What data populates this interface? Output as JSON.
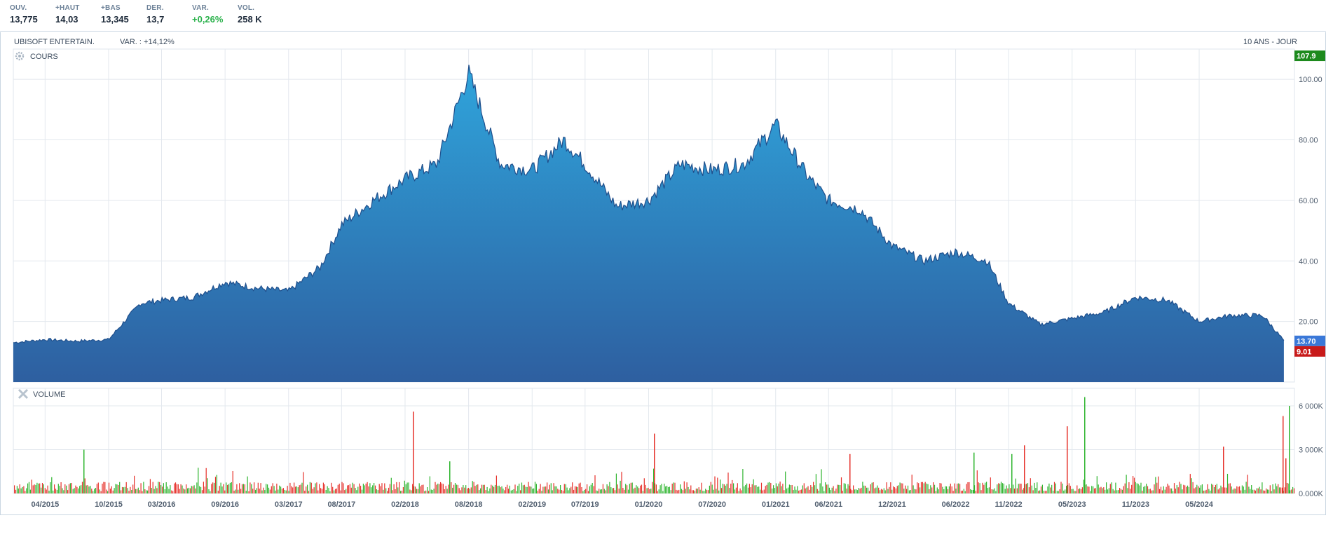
{
  "quote": {
    "open_label": "OUV.",
    "open_value": "13,775",
    "high_label": "+HAUT",
    "high_value": "14,03",
    "low_label": "+BAS",
    "low_value": "13,345",
    "last_label": "DER.",
    "last_value": "13,7",
    "change_label": "VAR.",
    "change_value": "+0,26%",
    "volume_label": "VOL.",
    "volume_value": "258 K"
  },
  "header": {
    "name": "UBISOFT ENTERTAIN.",
    "variation": "VAR. : +14,12%",
    "period": "10 ANS - JOUR"
  },
  "colors": {
    "area_top": "#2fa5dc",
    "area_bottom": "#2e5fa0",
    "line": "#1f4f8c",
    "volume_up": "#2fb52f",
    "volume_down": "#e6302a",
    "badge_high": "#1d8a1d",
    "badge_last": "#3a78d8",
    "badge_low": "#c81a1a"
  },
  "chart_data": [
    {
      "type": "area",
      "panel": "COURS",
      "panel_icon": "gear-icon",
      "x_tick_labels": [
        "04/2015",
        "10/2015",
        "03/2016",
        "09/2016",
        "03/2017",
        "08/2017",
        "02/2018",
        "08/2018",
        "02/2019",
        "07/2019",
        "01/2020",
        "07/2020",
        "01/2021",
        "06/2021",
        "12/2021",
        "06/2022",
        "11/2022",
        "05/2023",
        "11/2023",
        "05/2024"
      ],
      "y_tick_labels": [
        "20.00",
        "40.00",
        "60.00",
        "80.00",
        "100.00"
      ],
      "ylim": [
        0,
        110
      ],
      "grid": true,
      "markers": {
        "high": "107.9",
        "last": "13.70",
        "low": "9.01"
      },
      "series": [
        {
          "x": [
            "01/2015",
            "04/2015",
            "07/2015",
            "10/2015",
            "01/2016",
            "03/2016",
            "06/2016",
            "09/2016",
            "12/2016",
            "03/2017",
            "06/2017",
            "08/2017",
            "11/2017",
            "02/2018",
            "05/2018",
            "08/2018",
            "11/2018",
            "02/2019",
            "05/2019",
            "07/2019",
            "10/2019",
            "01/2020",
            "04/2020",
            "07/2020",
            "10/2020",
            "01/2021",
            "04/2021",
            "06/2021",
            "09/2021",
            "12/2021",
            "03/2022",
            "06/2022",
            "09/2022",
            "11/2022",
            "02/2023",
            "05/2023",
            "08/2023",
            "11/2023",
            "02/2024",
            "05/2024",
            "08/2024",
            "11/2024",
            "01/2025"
          ],
          "values": [
            13,
            14,
            13.5,
            14,
            26,
            27,
            28,
            33,
            31,
            30,
            38,
            52,
            60,
            67,
            72,
            102,
            72,
            70,
            80,
            72,
            58,
            60,
            72,
            70,
            72,
            85,
            68,
            60,
            57,
            45,
            40,
            43,
            40,
            26,
            19,
            21,
            23,
            28,
            27,
            20,
            22,
            22,
            13.7
          ]
        }
      ]
    },
    {
      "type": "bar",
      "panel": "VOLUME",
      "panel_icon": "cross-icon",
      "y_tick_labels": [
        "0.000K",
        "3 000K",
        "6 000K"
      ],
      "ylim": [
        0,
        7200
      ],
      "grid": true,
      "series": [
        {
          "name": "hausse",
          "values": [
            3000,
            5000,
            2200
          ]
        },
        {
          "name": "baisse",
          "values": [
            3100,
            5600,
            4100,
            4600,
            6600,
            5300,
            6000
          ]
        }
      ]
    }
  ]
}
